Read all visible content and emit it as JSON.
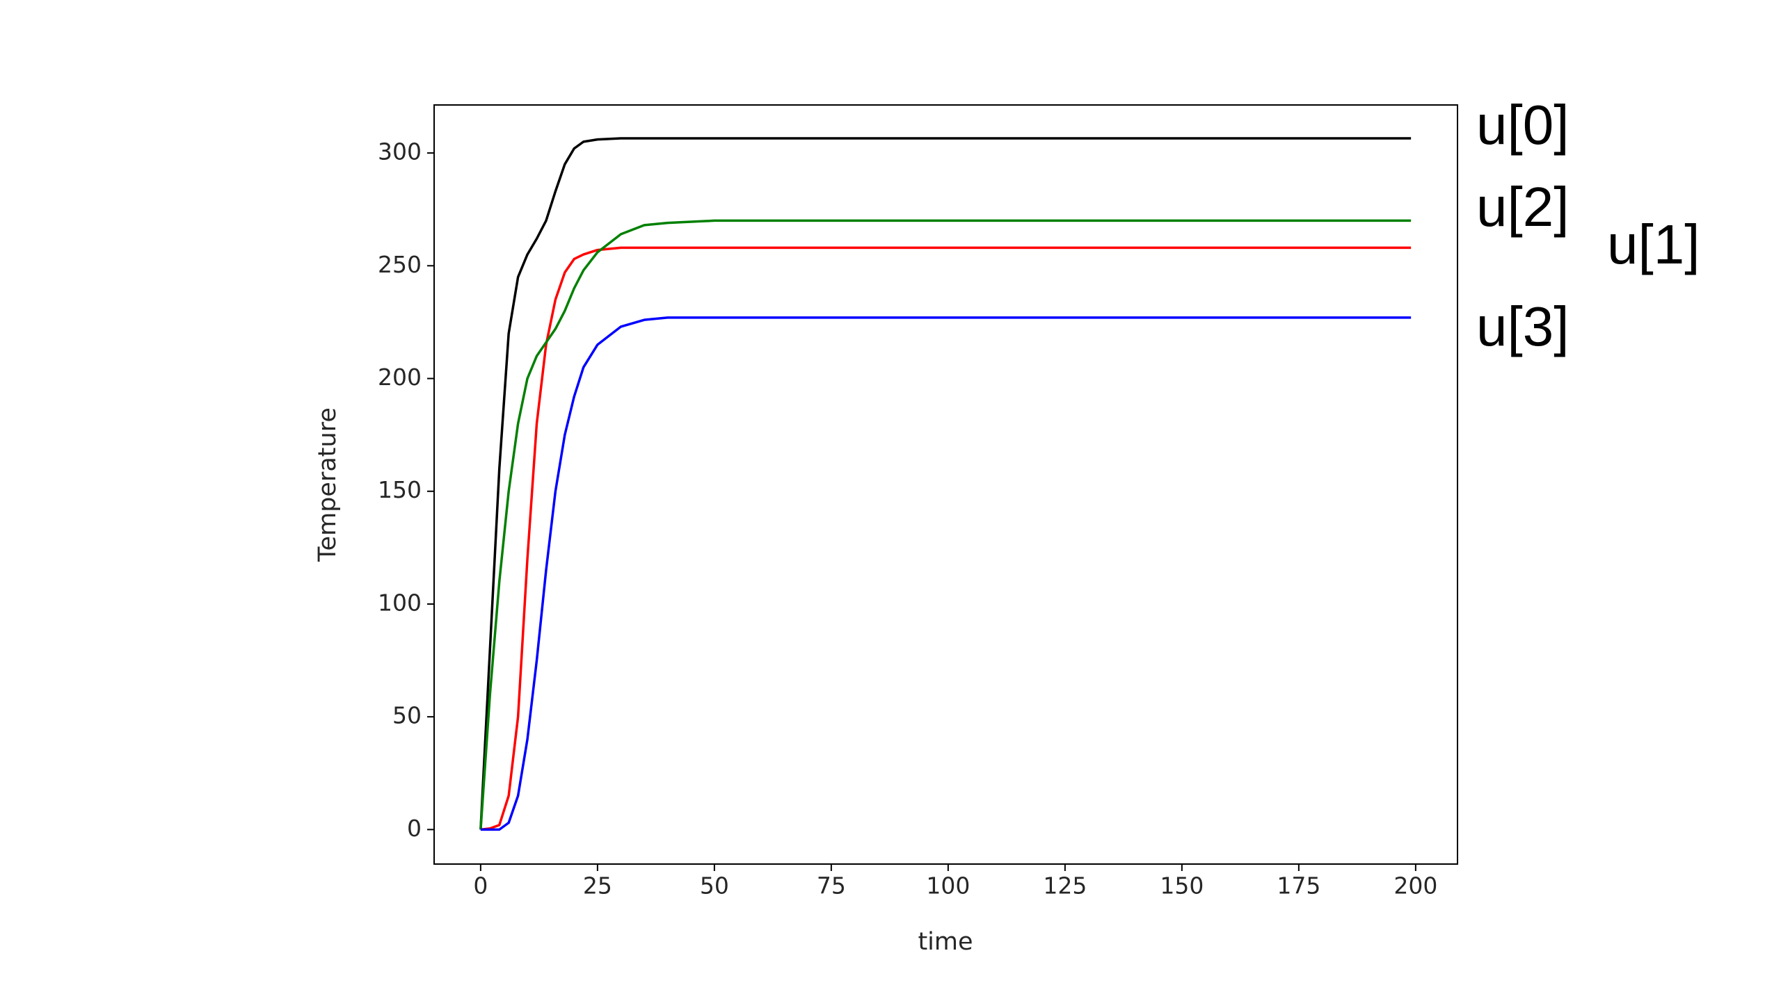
{
  "chart_data": {
    "type": "line",
    "xlabel": "time",
    "ylabel": "Temperature",
    "x": [
      0,
      2,
      4,
      6,
      8,
      10,
      12,
      14,
      16,
      18,
      20,
      22,
      25,
      30,
      35,
      40,
      50,
      75,
      100,
      150,
      199
    ],
    "series": [
      {
        "name": "u[0]",
        "color": "#000000",
        "values": [
          0,
          80,
          160,
          220,
          245,
          255,
          262,
          270,
          283,
          295,
          302,
          305,
          306,
          306.5,
          306.5,
          306.5,
          306.5,
          306.5,
          306.5,
          306.5,
          306.5
        ]
      },
      {
        "name": "u[1]",
        "color": "#ff0000",
        "values": [
          0,
          0.5,
          2,
          15,
          50,
          120,
          180,
          215,
          235,
          247,
          253,
          255,
          257,
          258,
          258,
          258,
          258,
          258,
          258,
          258,
          258
        ]
      },
      {
        "name": "u[2]",
        "color": "#008000",
        "values": [
          0,
          60,
          110,
          150,
          180,
          200,
          210,
          216,
          222,
          230,
          240,
          248,
          256,
          264,
          268,
          269,
          270,
          270,
          270,
          270,
          270
        ]
      },
      {
        "name": "u[3]",
        "color": "#0000ff",
        "values": [
          0,
          0,
          0,
          3,
          15,
          40,
          75,
          115,
          150,
          175,
          192,
          205,
          215,
          223,
          226,
          227,
          227,
          227,
          227,
          227,
          227
        ]
      }
    ],
    "xlim": [
      -9.95,
      208.95
    ],
    "xticks": [
      0,
      25,
      50,
      75,
      100,
      125,
      150,
      175,
      200
    ],
    "ylim": [
      -15.3,
      321.3
    ],
    "yticks": [
      0,
      50,
      100,
      150,
      200,
      250,
      300
    ],
    "grid": false
  }
}
